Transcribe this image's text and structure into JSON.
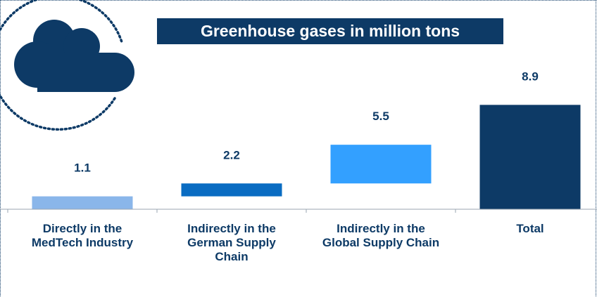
{
  "chart_data": {
    "type": "bar",
    "subtype": "waterfall",
    "title": "Greenhouse gases in million tons",
    "categories": [
      [
        "Directly in the",
        "MedTech Industry"
      ],
      [
        "Indirectly in the",
        "German Supply",
        "Chain"
      ],
      [
        "Indirectly in the",
        "Global Supply Chain"
      ],
      [
        "Total"
      ]
    ],
    "values": [
      1.1,
      2.2,
      5.5,
      8.9
    ],
    "value_labels": [
      "1.1",
      "2.2",
      "5.5",
      "8.9"
    ],
    "is_total": [
      false,
      false,
      false,
      true
    ],
    "colors": [
      "#8ab6ea",
      "#0a6cc2",
      "#33a0ff",
      "#0d3a66"
    ],
    "grid": false,
    "legend": "none"
  },
  "icon": "cloud-icon",
  "accent_color": "#0d3a66"
}
